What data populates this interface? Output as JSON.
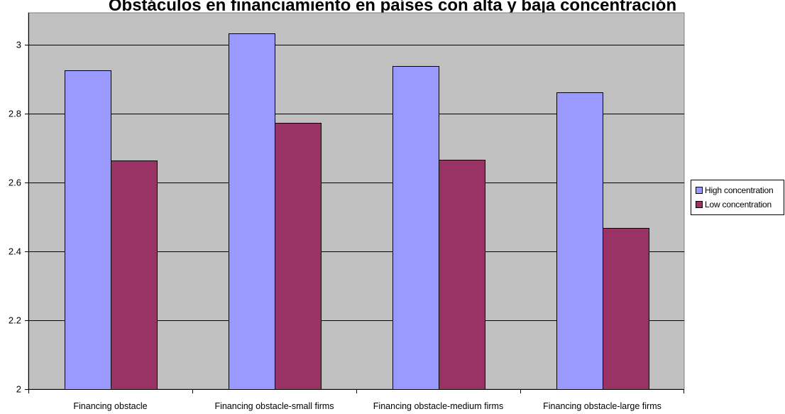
{
  "chart_data": {
    "type": "bar",
    "title": "Obstáculos en financiamiento en países con alta y baja concentración",
    "categories": [
      "Financing obstacle",
      "Financing obstacle-small firms",
      "Financing obstacle-medium firms",
      "Financing obstacle-large firms"
    ],
    "series": [
      {
        "name": "High concentration",
        "values": [
          2.925,
          3.032,
          2.938,
          2.861
        ],
        "color": "#9999ff"
      },
      {
        "name": "Low concentration",
        "values": [
          2.664,
          2.774,
          2.667,
          2.468
        ],
        "color": "#993366"
      }
    ],
    "y_ticks": [
      "2",
      "2.2",
      "2.4",
      "2.6",
      "2.8",
      "3"
    ],
    "ylim": [
      2,
      3.1
    ],
    "xlabel": "",
    "ylabel": "",
    "grid": true,
    "legend_position": "right",
    "plot_background": "#c0c0c0"
  }
}
